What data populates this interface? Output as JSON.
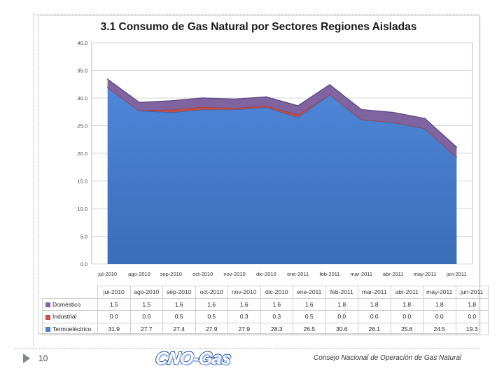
{
  "slide": {
    "page_number": "10",
    "logo_text": "CNO-Gas",
    "footer_text": "Consejo Nacional de Operación de Gas Natural"
  },
  "chart_data": {
    "type": "area",
    "stacked": true,
    "title": "3.1 Consumo de Gas Natural por Sectores Regiones Aisladas",
    "xlabel": "",
    "ylabel": "",
    "ylim": [
      0,
      40
    ],
    "yticks": [
      "0.0",
      "5.0",
      "10.0",
      "15.0",
      "20.0",
      "25.0",
      "30.0",
      "35.0",
      "40.0"
    ],
    "grid": true,
    "legend": "table-below",
    "categories": [
      "jul-2010",
      "ago-2010",
      "sep-2010",
      "oct-2010",
      "nov-2010",
      "dic-2010",
      "ene-2011",
      "feb-2011",
      "mar-2011",
      "abr-2011",
      "may-2011",
      "jun-2011"
    ],
    "series": [
      {
        "name": "Termoeléctrico",
        "color": "#4a7fd0",
        "values": [
          31.9,
          27.7,
          27.4,
          27.9,
          27.9,
          28.3,
          26.5,
          30.6,
          26.1,
          25.6,
          24.5,
          19.3
        ],
        "labels": [
          "31.9",
          "27.7",
          "27.4",
          "27.9",
          "27.9",
          "28.3",
          "26.5",
          "30.6",
          "26.1",
          "25.6",
          "24.5",
          "19.3"
        ]
      },
      {
        "name": "Industrial",
        "color": "#c0504d",
        "values": [
          0.0,
          0.0,
          0.5,
          0.5,
          0.3,
          0.3,
          0.5,
          0.0,
          0.0,
          0.0,
          0.0,
          0.0
        ],
        "labels": [
          "0.0",
          "0.0",
          "0.5",
          "0.5",
          "0.3",
          "0.3",
          "0.5",
          "0.0",
          "0.0",
          "0.0",
          "0.0",
          "0.0"
        ]
      },
      {
        "name": "Doméstico",
        "color": "#8064a2",
        "values": [
          1.5,
          1.5,
          1.6,
          1.6,
          1.6,
          1.6,
          1.6,
          1.8,
          1.8,
          1.8,
          1.8,
          1.8
        ],
        "labels": [
          "1.5",
          "1.5",
          "1.6",
          "1.6",
          "1.6",
          "1.6",
          "1.6",
          "1.8",
          "1.8",
          "1.8",
          "1.8",
          "1.8"
        ]
      }
    ]
  }
}
